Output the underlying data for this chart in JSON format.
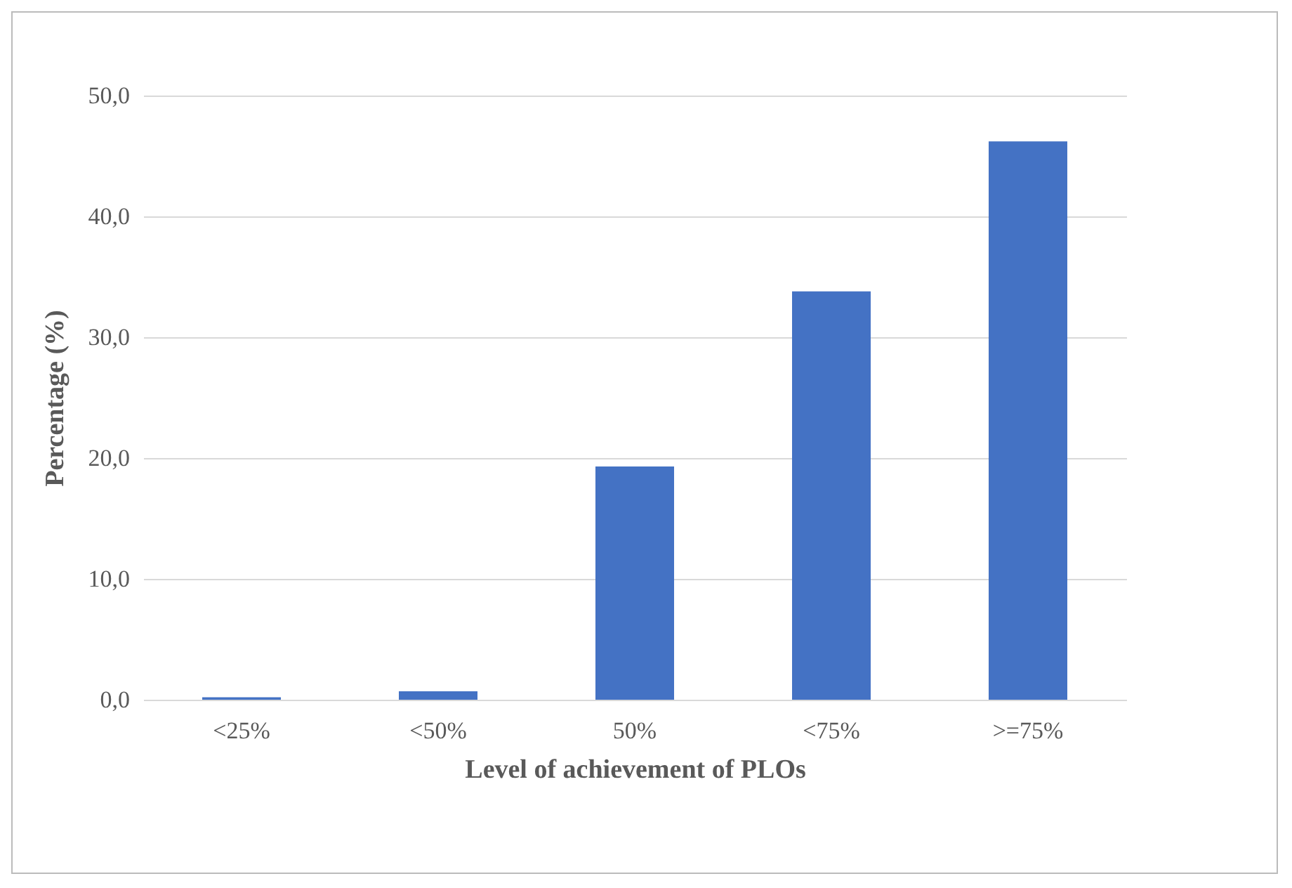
{
  "chart_data": {
    "type": "bar",
    "xlabel": "Level of achievement of PLOs",
    "ylabel": "Percentage (%)",
    "categories": [
      "<25%",
      "<50%",
      "50%",
      "<75%",
      ">=75%"
    ],
    "values": [
      0.2,
      0.7,
      19.3,
      33.8,
      46.2
    ],
    "color": "#4472c4",
    "ylim": [
      0,
      50
    ],
    "yticks": [
      {
        "value": 0,
        "label": "0,0"
      },
      {
        "value": 10,
        "label": "10,0"
      },
      {
        "value": 20,
        "label": "20,0"
      },
      {
        "value": 30,
        "label": "30,0"
      },
      {
        "value": 40,
        "label": "40,0"
      },
      {
        "value": 50,
        "label": "50,0"
      }
    ],
    "grid": "y"
  }
}
